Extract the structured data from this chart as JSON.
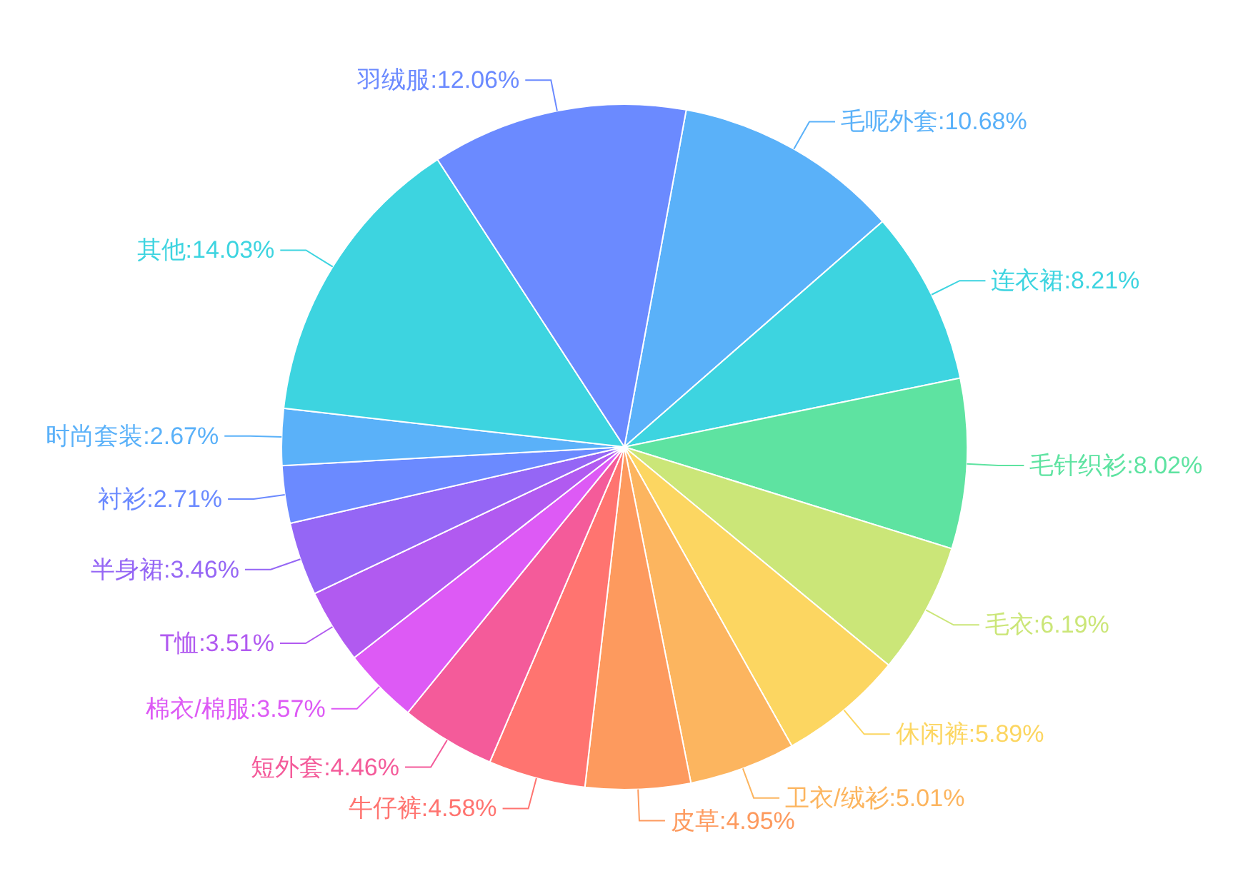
{
  "chart_data": {
    "type": "pie",
    "categories": [
      "毛呢外套",
      "连衣裙",
      "毛针织衫",
      "毛衣",
      "休闲裤",
      "卫衣/绒衫",
      "皮草",
      "牛仔裤",
      "短外套",
      "棉衣/棉服",
      "T恤",
      "半身裙",
      "衬衫",
      "时尚套装",
      "其他",
      "羽绒服"
    ],
    "values": [
      10.68,
      8.21,
      8.02,
      6.19,
      5.89,
      5.01,
      4.95,
      4.58,
      4.46,
      3.57,
      3.51,
      3.46,
      2.71,
      2.67,
      14.03,
      12.06
    ],
    "colors": [
      "#5ab1f9",
      "#3dd4e0",
      "#5ee3a1",
      "#cbe678",
      "#fcd661",
      "#fcb55f",
      "#fd9a5e",
      "#ff7470",
      "#f45b9a",
      "#dd5af5",
      "#b15af0",
      "#9566f5",
      "#6b8aff",
      "#5ab1f9",
      "#3dd4e0",
      "#6b8aff"
    ],
    "value_labels": [
      "10.68%",
      "8.21%",
      "8.02%",
      "6.19%",
      "5.89%",
      "5.01%",
      "4.95%",
      "4.58%",
      "4.46%",
      "3.57%",
      "3.51%",
      "3.46%",
      "2.71%",
      "2.67%",
      "14.03%",
      "12.06%"
    ],
    "legend": false
  }
}
